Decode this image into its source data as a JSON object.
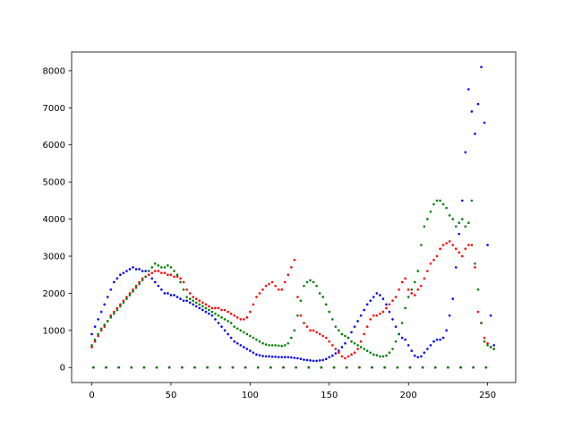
{
  "chart_data": {
    "type": "scatter",
    "x": [
      0,
      2,
      4,
      6,
      8,
      10,
      12,
      14,
      16,
      18,
      20,
      22,
      24,
      26,
      28,
      30,
      32,
      34,
      36,
      38,
      40,
      42,
      44,
      46,
      48,
      50,
      52,
      54,
      56,
      58,
      60,
      62,
      64,
      66,
      68,
      70,
      72,
      74,
      76,
      78,
      80,
      82,
      84,
      86,
      88,
      90,
      92,
      94,
      96,
      98,
      100,
      102,
      104,
      106,
      108,
      110,
      112,
      114,
      116,
      118,
      120,
      122,
      124,
      126,
      128,
      130,
      132,
      134,
      136,
      138,
      140,
      142,
      144,
      146,
      148,
      150,
      152,
      154,
      156,
      158,
      160,
      162,
      164,
      166,
      168,
      170,
      172,
      174,
      176,
      178,
      180,
      182,
      184,
      186,
      188,
      190,
      192,
      194,
      196,
      198,
      200,
      202,
      204,
      206,
      208,
      210,
      212,
      214,
      216,
      218,
      220,
      222,
      224,
      226,
      228,
      230,
      232,
      234,
      236,
      238,
      240,
      242,
      244,
      246,
      248,
      250,
      252,
      254,
      1,
      9,
      17,
      25,
      33,
      41,
      49,
      57,
      65,
      73,
      81,
      89,
      97,
      105,
      113,
      121,
      129,
      137,
      145,
      153,
      161,
      169,
      177,
      185,
      193,
      201,
      209,
      217,
      225,
      233,
      241,
      249
    ],
    "series": [
      {
        "color": "#0000ff",
        "values": [
          900,
          1100,
          1300,
          1500,
          1700,
          1900,
          2100,
          2300,
          2400,
          2500,
          2550,
          2600,
          2650,
          2700,
          2650,
          2650,
          2600,
          2600,
          2500,
          2400,
          2300,
          2200,
          2100,
          2000,
          2000,
          1950,
          1950,
          1900,
          1850,
          1800,
          1800,
          1750,
          1700,
          1650,
          1600,
          1550,
          1500,
          1450,
          1400,
          1300,
          1200,
          1100,
          1000,
          900,
          800,
          700,
          650,
          600,
          550,
          500,
          450,
          400,
          350,
          330,
          310,
          300,
          300,
          290,
          290,
          280,
          280,
          280,
          280,
          270,
          260,
          250,
          230,
          210,
          200,
          190,
          180,
          180,
          190,
          200,
          230,
          280,
          320,
          380,
          450,
          550,
          650,
          800,
          950,
          1100,
          1250,
          1400,
          1550,
          1700,
          1800,
          1900,
          2000,
          1950,
          1850,
          1700,
          1500,
          1300,
          1100,
          900,
          800,
          750,
          600,
          450,
          320,
          280,
          300,
          400,
          500,
          600,
          700,
          750,
          750,
          800,
          1000,
          1400,
          1850,
          2700,
          3600,
          4500,
          5800,
          7500,
          6900,
          6300,
          7100,
          8100,
          6600,
          3300,
          1400,
          600,
          0,
          0,
          0,
          0,
          0,
          0,
          0,
          0,
          0,
          0,
          0,
          0,
          0,
          0,
          0,
          0,
          0,
          0,
          0,
          0,
          0,
          0,
          0,
          0,
          0,
          0,
          0,
          0,
          0,
          0,
          0,
          0
        ]
      },
      {
        "color": "#ff0000",
        "values": [
          550,
          700,
          850,
          1000,
          1100,
          1250,
          1400,
          1500,
          1600,
          1700,
          1800,
          1900,
          2000,
          2100,
          2200,
          2300,
          2400,
          2450,
          2500,
          2550,
          2600,
          2600,
          2550,
          2550,
          2500,
          2500,
          2450,
          2450,
          2400,
          2300,
          2100,
          2000,
          1900,
          1850,
          1800,
          1750,
          1700,
          1650,
          1600,
          1600,
          1600,
          1550,
          1550,
          1500,
          1450,
          1400,
          1350,
          1300,
          1300,
          1350,
          1500,
          1700,
          1900,
          2000,
          2100,
          2200,
          2250,
          2300,
          2200,
          2100,
          2100,
          2300,
          2500,
          2700,
          2900,
          1900,
          1400,
          1200,
          1100,
          1000,
          1000,
          950,
          900,
          850,
          800,
          700,
          600,
          500,
          400,
          300,
          250,
          300,
          350,
          400,
          500,
          700,
          900,
          1100,
          1300,
          1400,
          1400,
          1450,
          1500,
          1600,
          1700,
          1800,
          1900,
          2100,
          2300,
          2400,
          2100,
          2000,
          1950,
          2100,
          2200,
          2400,
          2600,
          2800,
          2900,
          3000,
          3200,
          3300,
          3350,
          3400,
          3300,
          3200,
          3100,
          3000,
          3200,
          3300,
          3300,
          2700,
          1500,
          1200,
          800,
          650,
          550,
          500,
          0,
          0,
          0,
          0,
          0,
          0,
          0,
          0,
          0,
          0,
          0,
          0,
          0,
          0,
          0,
          0,
          0,
          0,
          0,
          0,
          0,
          0,
          0,
          0,
          0,
          0,
          0,
          0,
          0,
          0,
          0,
          0
        ]
      },
      {
        "color": "#008000",
        "values": [
          600,
          750,
          900,
          1050,
          1150,
          1250,
          1350,
          1450,
          1550,
          1650,
          1750,
          1850,
          1950,
          2050,
          2150,
          2250,
          2350,
          2450,
          2600,
          2700,
          2800,
          2750,
          2700,
          2700,
          2750,
          2700,
          2600,
          2500,
          2300,
          2100,
          1900,
          1850,
          1800,
          1750,
          1700,
          1650,
          1600,
          1550,
          1500,
          1450,
          1400,
          1350,
          1300,
          1250,
          1200,
          1100,
          1050,
          1000,
          950,
          900,
          850,
          800,
          750,
          700,
          650,
          620,
          600,
          600,
          600,
          590,
          580,
          600,
          650,
          800,
          1000,
          1400,
          1800,
          2200,
          2300,
          2350,
          2300,
          2200,
          2000,
          1900,
          1700,
          1500,
          1300,
          1100,
          1000,
          900,
          850,
          800,
          700,
          650,
          600,
          550,
          500,
          450,
          400,
          350,
          330,
          300,
          300,
          320,
          400,
          500,
          700,
          900,
          1200,
          1600,
          1900,
          2100,
          2300,
          2600,
          3300,
          3800,
          4000,
          4200,
          4400,
          4500,
          4500,
          4400,
          4300,
          4100,
          4000,
          3800,
          3900,
          4000,
          3800,
          3900,
          4500,
          2800,
          2100,
          1200,
          700,
          600,
          550,
          500,
          0,
          0,
          0,
          0,
          0,
          0,
          0,
          0,
          0,
          0,
          0,
          0,
          0,
          0,
          0,
          0,
          0,
          0,
          0,
          0,
          0,
          0,
          0,
          0,
          0,
          0,
          0,
          0,
          0,
          0,
          0,
          0
        ]
      }
    ],
    "xlim": [
      -12.75,
      267.75
    ],
    "ylim": [
      -405,
      8505
    ],
    "xticks": [
      0,
      50,
      100,
      150,
      200,
      250
    ],
    "yticks": [
      0,
      1000,
      2000,
      3000,
      4000,
      5000,
      6000,
      7000,
      8000
    ]
  }
}
